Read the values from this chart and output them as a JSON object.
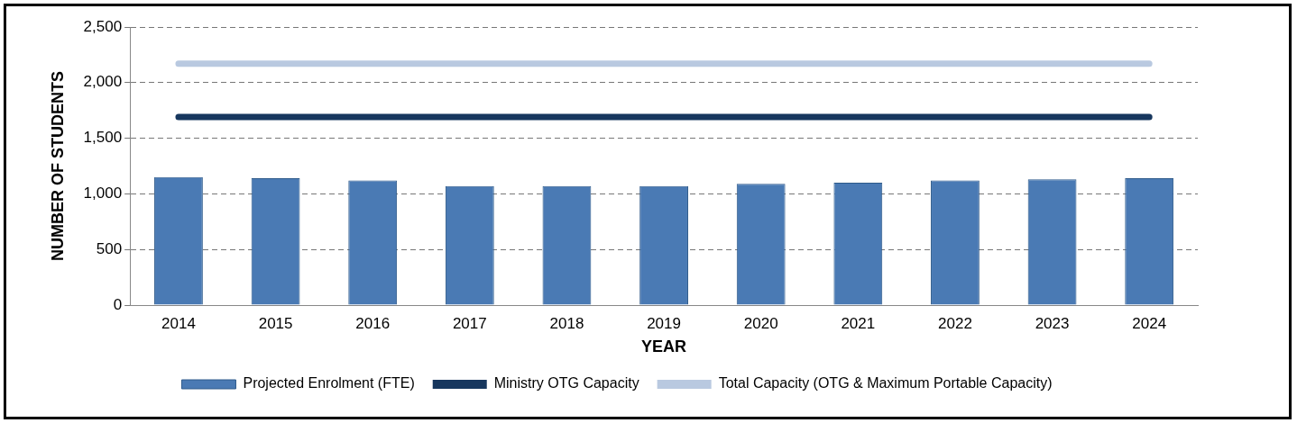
{
  "chart_data": {
    "type": "bar",
    "xlabel": "YEAR",
    "ylabel": "NUMBER OF STUDENTS",
    "categories": [
      "2014",
      "2015",
      "2016",
      "2017",
      "2018",
      "2019",
      "2020",
      "2021",
      "2022",
      "2023",
      "2024"
    ],
    "series": [
      {
        "name": "Projected Enrolment (FTE)",
        "color": "#4a7ab4",
        "values": [
          1150,
          1140,
          1120,
          1070,
          1070,
          1070,
          1090,
          1100,
          1120,
          1130,
          1140
        ]
      },
      {
        "name": "Ministry OTG Capacity",
        "type": "line",
        "color": "#17375e",
        "values": [
          1690,
          1690,
          1690,
          1690,
          1690,
          1690,
          1690,
          1690,
          1690,
          1690,
          1690
        ]
      },
      {
        "name": "Total Capacity (OTG & Maximum Portable Capacity)",
        "type": "line",
        "color": "#b9c9e0",
        "values": [
          2170,
          2170,
          2170,
          2170,
          2170,
          2170,
          2170,
          2170,
          2170,
          2170,
          2170
        ]
      }
    ],
    "ylim": [
      0,
      2500
    ],
    "yticks": [
      {
        "value": 0,
        "label": "0"
      },
      {
        "value": 500,
        "label": "500"
      },
      {
        "value": 1000,
        "label": "1,000"
      },
      {
        "value": 1500,
        "label": "1,500"
      },
      {
        "value": 2000,
        "label": "2,000"
      },
      {
        "value": 2500,
        "label": "2,500"
      }
    ],
    "grid": "y",
    "legend": "bottom",
    "marker": "none",
    "line_style": "solid"
  }
}
